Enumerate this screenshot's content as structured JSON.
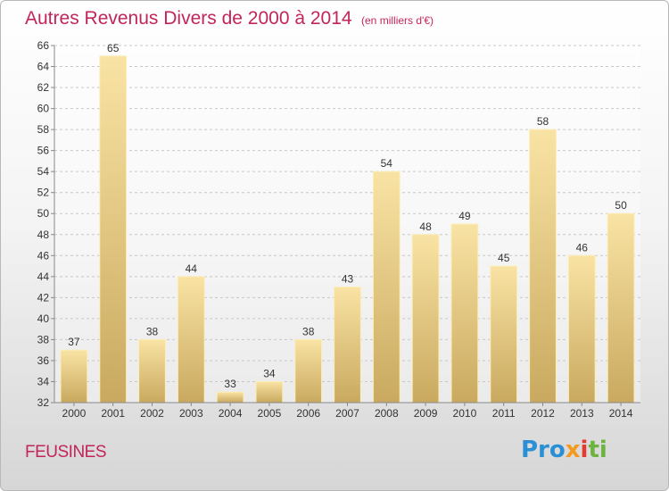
{
  "title": "Autres Revenus Divers de 2000 à 2014",
  "subtitle": "(en milliers d'€)",
  "commune": "FEUSINES",
  "logo": {
    "part1": "Pro",
    "part2": "x",
    "part3": "i",
    "part4": "ti"
  },
  "colors": {
    "title": "#c2255c",
    "bar_light": "#f9e3a4",
    "bar_dark": "#c9a95f",
    "grid": "#c8c8c8",
    "axis_text": "#333333"
  },
  "chart_data": {
    "type": "bar",
    "categories": [
      "2000",
      "2001",
      "2002",
      "2003",
      "2004",
      "2005",
      "2006",
      "2007",
      "2008",
      "2009",
      "2010",
      "2011",
      "2012",
      "2013",
      "2014"
    ],
    "values": [
      37,
      65,
      38,
      44,
      33,
      34,
      38,
      43,
      54,
      48,
      49,
      45,
      58,
      46,
      50
    ],
    "ylim": [
      32,
      66
    ],
    "yticks": [
      32,
      34,
      36,
      38,
      40,
      42,
      44,
      46,
      48,
      50,
      52,
      54,
      56,
      58,
      60,
      62,
      64,
      66
    ],
    "grid": true,
    "legend": "none",
    "xlabel": "",
    "ylabel": ""
  }
}
